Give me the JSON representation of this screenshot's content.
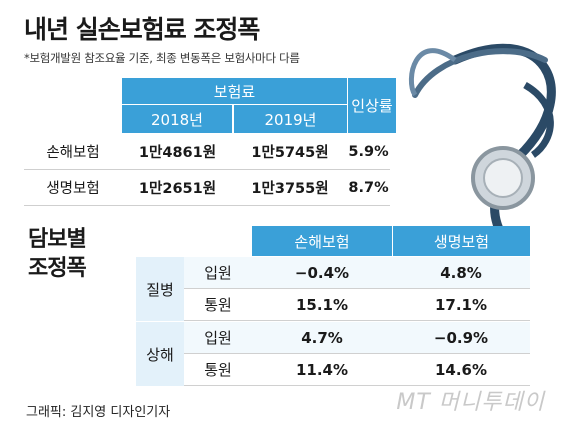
{
  "title": "내년 실손보험료 조정폭",
  "note": "*보험개발원 참조요율 기준, 최종 변동폭은 보험사마다 다름",
  "premium_table": {
    "group_header": "보험료",
    "col_2018": "2018년",
    "col_2019": "2019년",
    "rate_header": "인상률",
    "rows": [
      {
        "label": "손해보험",
        "v2018": "1만4861원",
        "v2019": "1만5745원",
        "rate": "5.9%"
      },
      {
        "label": "생명보험",
        "v2018": "1만2651원",
        "v2019": "1만3755원",
        "rate": "8.7%"
      }
    ]
  },
  "coverage_table": {
    "section_title_line1": "담보별",
    "section_title_line2": "조정폭",
    "col_nonlife": "손해보험",
    "col_life": "생명보험",
    "groups": [
      {
        "label": "질병",
        "rows": [
          {
            "type": "입원",
            "nonlife": "−0.4%",
            "life": "4.8%"
          },
          {
            "type": "통원",
            "nonlife": "15.1%",
            "life": "17.1%"
          }
        ]
      },
      {
        "label": "상해",
        "rows": [
          {
            "type": "입원",
            "nonlife": "4.7%",
            "life": "−0.9%"
          },
          {
            "type": "통원",
            "nonlife": "11.4%",
            "life": "14.6%"
          }
        ]
      }
    ]
  },
  "credit": "그래픽: 김지영 디자인기자",
  "watermark": "MT 머니투데이",
  "colors": {
    "header_blue": "#3aa0d8",
    "label_bg": "#e3f1fa"
  }
}
